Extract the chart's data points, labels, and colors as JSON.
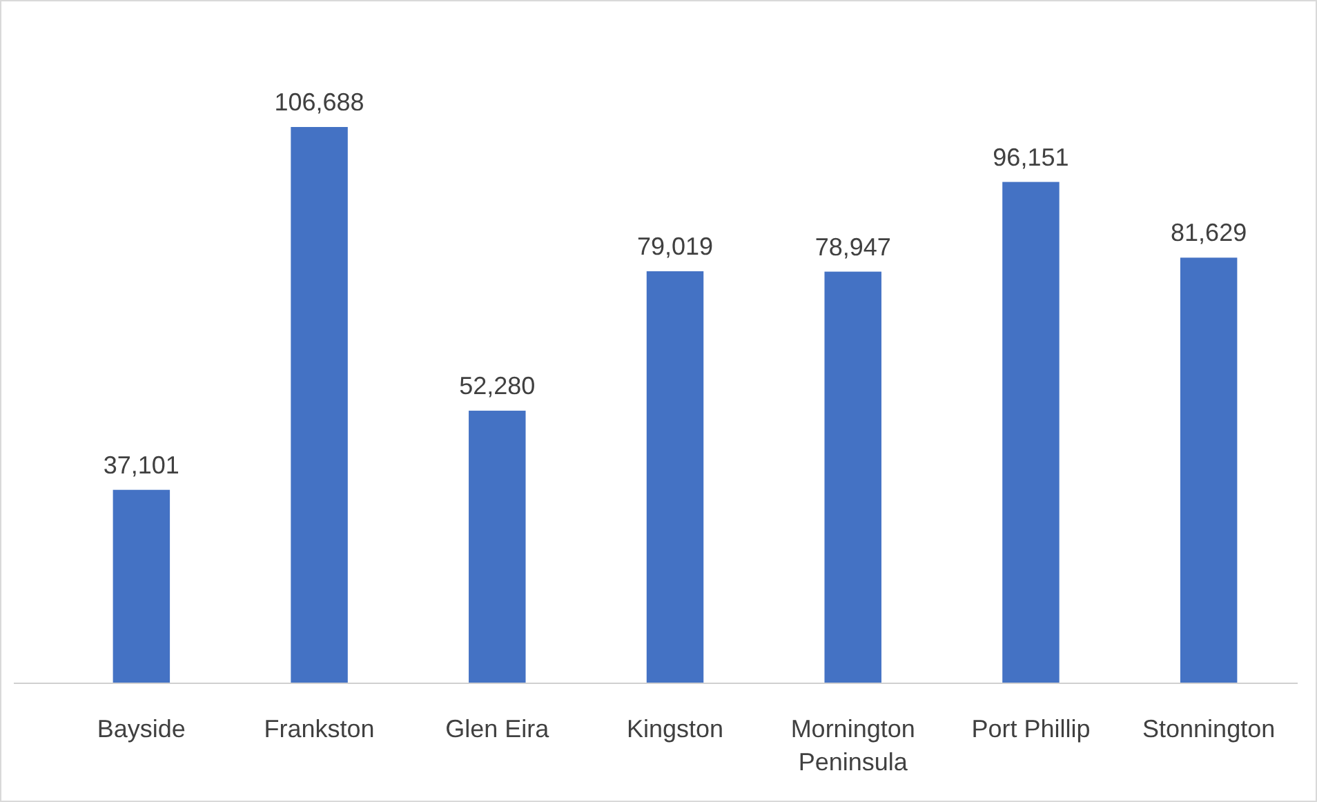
{
  "chart_data": {
    "type": "bar",
    "categories": [
      "Bayside",
      "Frankston",
      "Glen Eira",
      "Kingston",
      "Mornington Peninsula",
      "Port Phillip",
      "Stonnington"
    ],
    "values": [
      37101,
      106688,
      52280,
      79019,
      78947,
      96151,
      81629
    ],
    "value_labels": [
      "37,101",
      "106,688",
      "52,280",
      "79,019",
      "78,947",
      "96,151",
      "81,629"
    ],
    "color": "#4472c4"
  }
}
